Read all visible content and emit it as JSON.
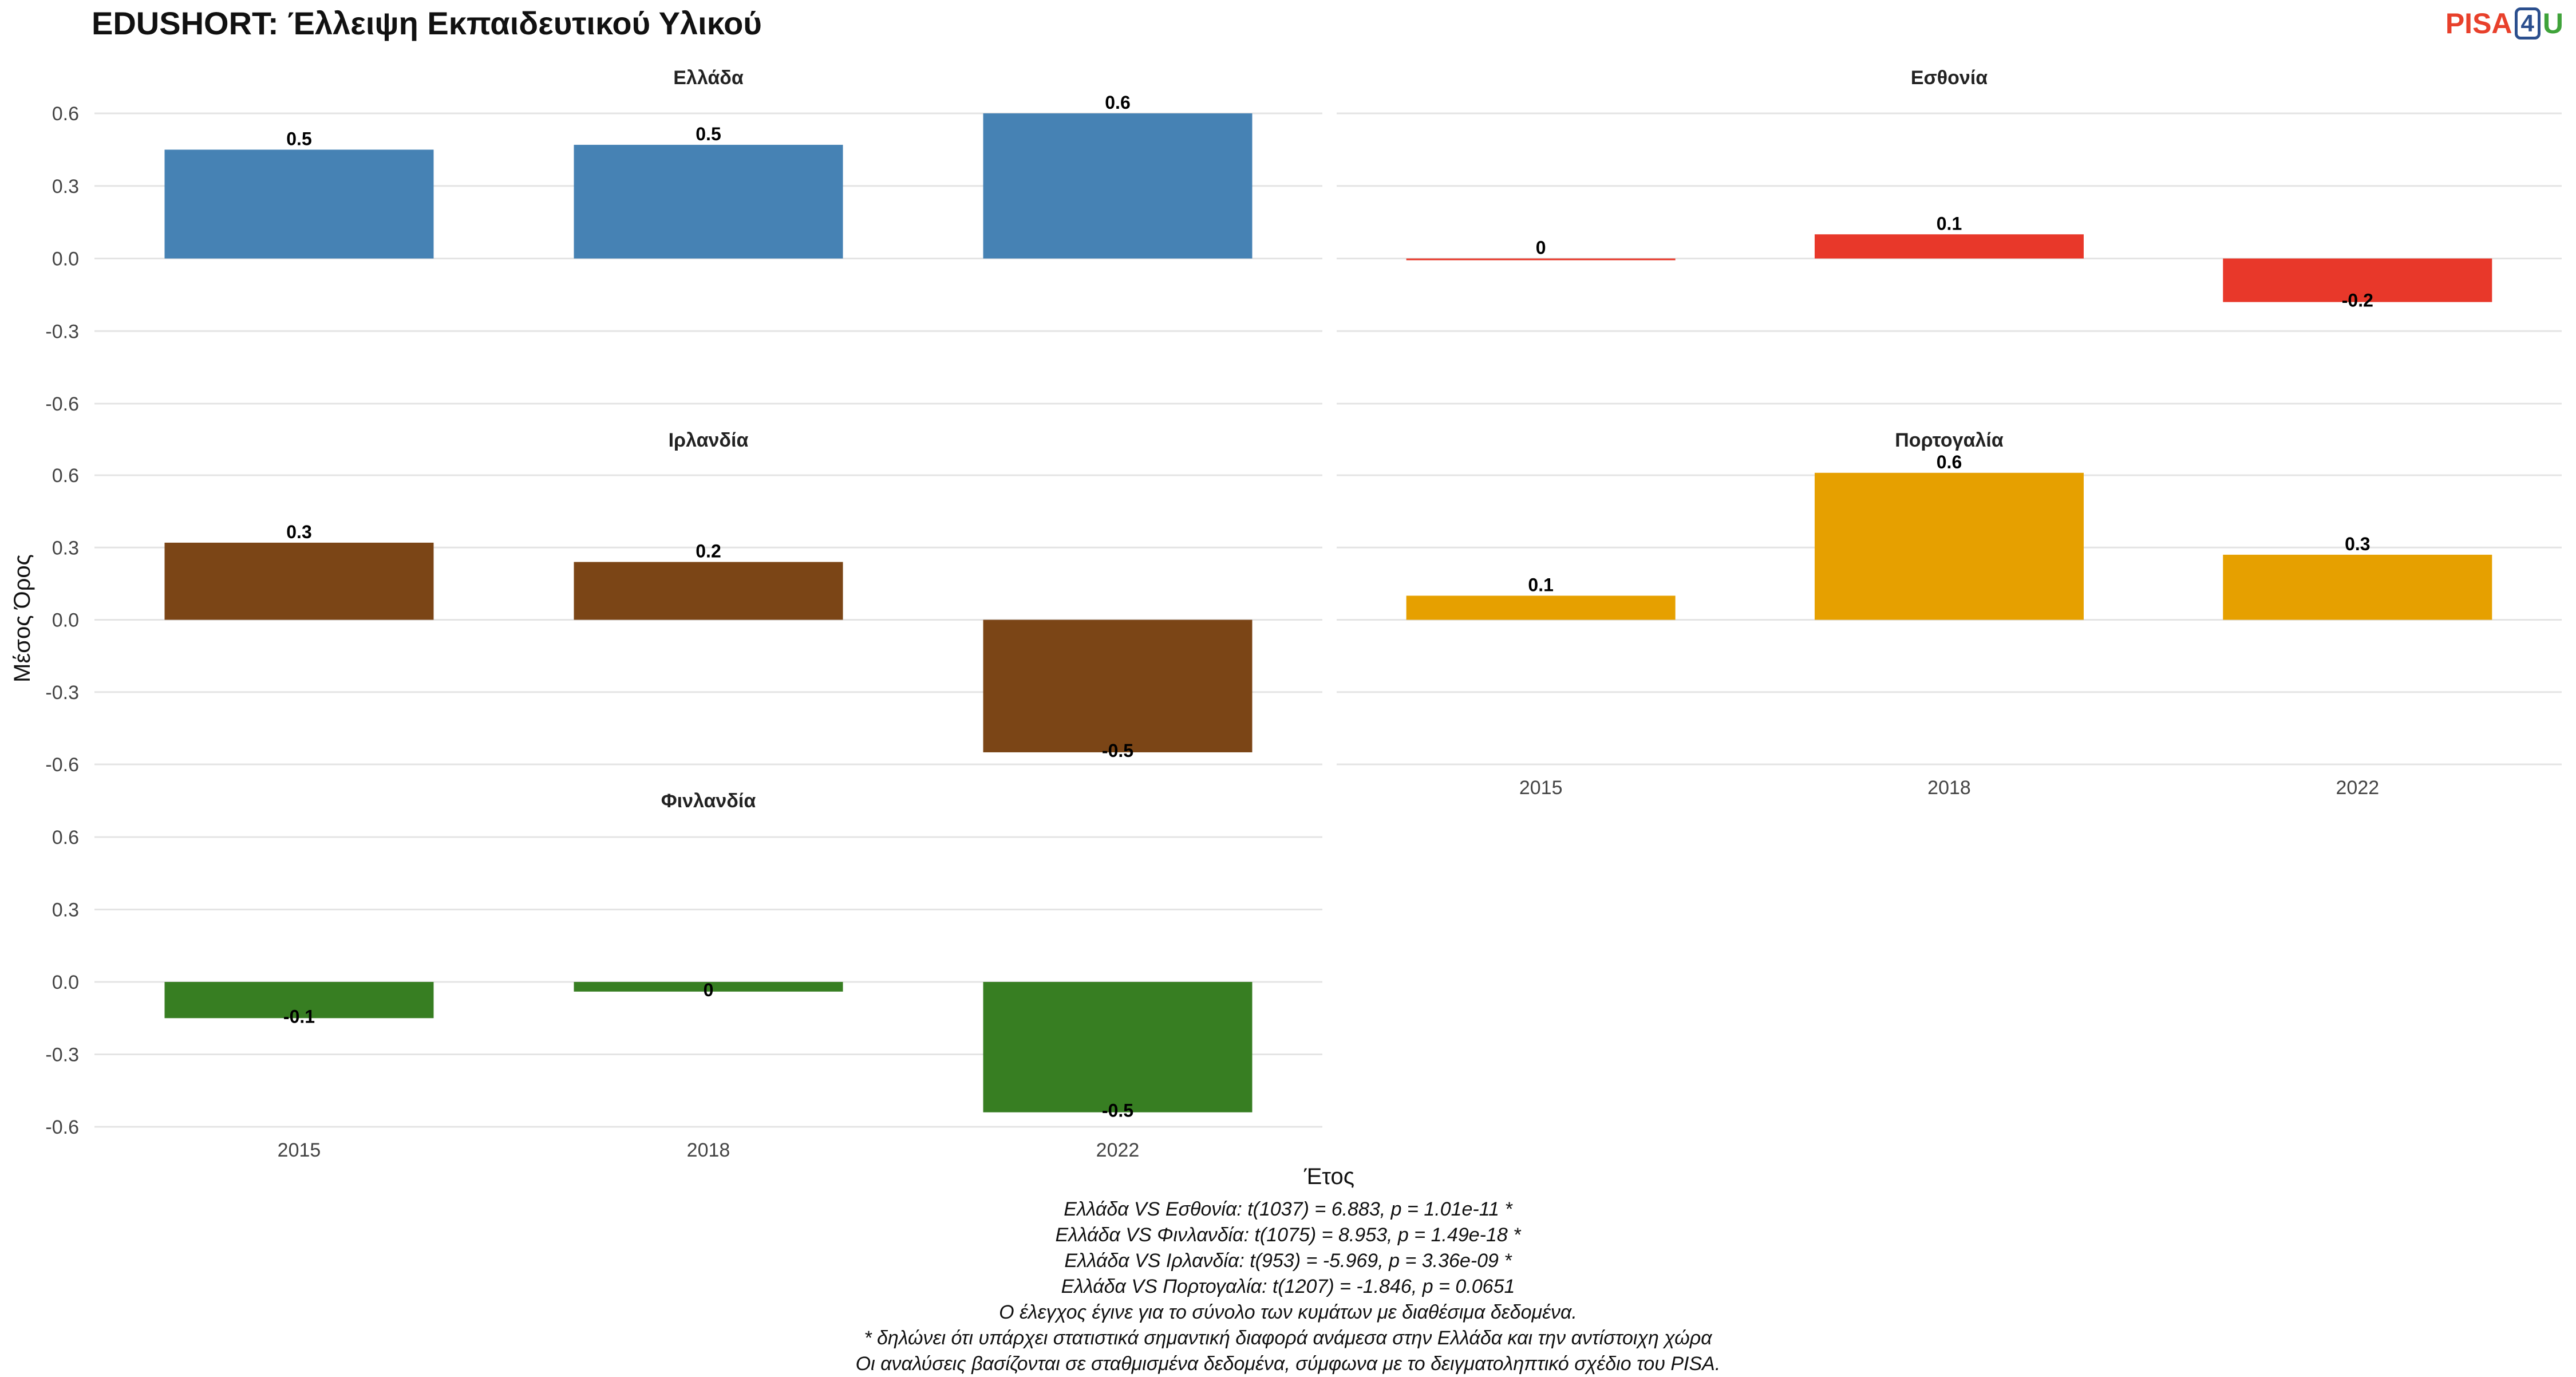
{
  "title": "EDUSHORT: Έλλειψη Εκπαιδευτικού Υλικού",
  "logo": {
    "part1": "PISA",
    "part2": "4",
    "part3": "U"
  },
  "chart_data": {
    "type": "bar",
    "title": "EDUSHORT: Έλλειψη Εκπαιδευτικού Υλικού",
    "xlabel": "Έτος",
    "ylabel": "Μέσος Όρος",
    "categories": [
      "2015",
      "2018",
      "2022"
    ],
    "ylim": [
      -0.6,
      0.6
    ],
    "yticks": [
      -0.6,
      -0.3,
      0.0,
      0.3,
      0.6
    ],
    "ytick_labels": [
      "-0.6",
      "-0.3",
      "0.0",
      "0.3",
      "0.6"
    ],
    "grid": true,
    "facets": [
      {
        "name": "Ελλάδα",
        "color": "#4682B4",
        "values": [
          0.45,
          0.47,
          0.6
        ],
        "labels": [
          "0.5",
          "0.5",
          "0.6"
        ]
      },
      {
        "name": "Εσθονία",
        "color": "#E8382A",
        "values": [
          0.0,
          0.1,
          -0.18
        ],
        "labels": [
          "0",
          "0.1",
          "-0.2"
        ]
      },
      {
        "name": "Ιρλανδία",
        "color": "#7B4516",
        "values": [
          0.32,
          0.24,
          -0.55
        ],
        "labels": [
          "0.3",
          "0.2",
          "-0.5"
        ]
      },
      {
        "name": "Πορτογαλία",
        "color": "#E6A000",
        "values": [
          0.1,
          0.61,
          0.27
        ],
        "labels": [
          "0.1",
          "0.6",
          "0.3"
        ]
      },
      {
        "name": "Φινλανδία",
        "color": "#377E22",
        "values": [
          -0.15,
          -0.04,
          -0.54
        ],
        "labels": [
          "-0.1",
          "0",
          "-0.5"
        ]
      }
    ]
  },
  "caption": [
    "Ελλάδα VS Εσθονία: t(1037) = 6.883, p = 1.01e-11 *",
    "Ελλάδα VS Φινλανδία: t(1075) = 8.953, p = 1.49e-18 *",
    "Ελλάδα VS Ιρλανδία: t(953) = -5.969, p = 3.36e-09 *",
    "Ελλάδα VS Πορτογαλία: t(1207) = -1.846, p = 0.0651",
    "Ο έλεγχος έγινε για το σύνολο των κυμάτων με διαθέσιμα δεδομένα.",
    "* δηλώνει ότι υπάρχει στατιστικά σημαντική διαφορά ανάμεσα στην Ελλάδα και την αντίστοιχη χώρα",
    "Οι αναλύσεις βασίζονται σε σταθμισμένα δεδομένα, σύμφωνα με το δειγματοληπτικό σχέδιο του PISA."
  ]
}
